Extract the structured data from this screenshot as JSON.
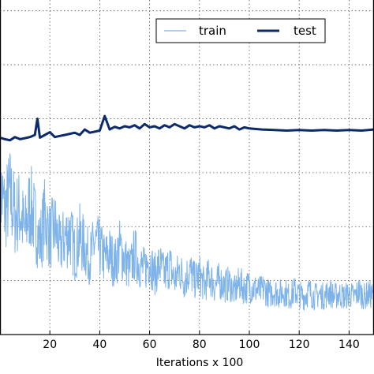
{
  "chart_data": {
    "type": "line",
    "title": "",
    "xlabel": "Iterations x 100",
    "ylabel": "",
    "xlim": [
      0,
      150
    ],
    "ylim": [
      0,
      6.2
    ],
    "x_ticks": [
      20,
      40,
      60,
      80,
      100,
      120,
      140
    ],
    "x_tick_labels": [
      "20",
      "40",
      "60",
      "80",
      "100",
      "120",
      "140"
    ],
    "y_gridlines": [
      1,
      2,
      3,
      4,
      5,
      6
    ],
    "grid": true,
    "legend": {
      "placement": "top-right",
      "columns": 2
    },
    "colors": {
      "train": "#7eb3ea",
      "test": "#0d2a6b"
    },
    "series": [
      {
        "name": "train",
        "x": [
          0,
          2,
          4,
          6,
          8,
          10,
          12,
          14,
          16,
          18,
          20,
          22,
          24,
          26,
          28,
          30,
          32,
          34,
          36,
          38,
          40,
          42,
          44,
          46,
          48,
          50,
          52,
          54,
          56,
          58,
          60,
          62,
          64,
          66,
          68,
          70,
          72,
          74,
          76,
          78,
          80,
          82,
          84,
          86,
          88,
          90,
          92,
          94,
          96,
          98,
          100,
          102,
          104,
          106,
          108,
          110,
          112,
          114,
          116,
          118,
          120,
          122,
          124,
          126,
          128,
          130,
          132,
          134,
          136,
          138,
          140,
          142,
          144,
          146,
          148,
          150
        ],
        "values": [
          2.7,
          2.3,
          2.6,
          2.2,
          2.3,
          1.9,
          2.4,
          2.1,
          1.7,
          2.2,
          1.8,
          2.0,
          1.6,
          1.8,
          1.9,
          1.5,
          1.8,
          1.6,
          1.4,
          1.7,
          1.6,
          1.4,
          1.5,
          1.3,
          1.6,
          1.4,
          1.2,
          1.5,
          1.3,
          1.2,
          1.4,
          1.1,
          1.3,
          1.1,
          1.3,
          1.0,
          1.2,
          1.0,
          1.2,
          1.0,
          1.1,
          0.9,
          1.1,
          0.9,
          1.0,
          0.9,
          0.95,
          0.8,
          0.95,
          0.85,
          0.9,
          0.85,
          0.8,
          0.85,
          0.75,
          0.8,
          0.75,
          0.8,
          0.7,
          0.8,
          0.75,
          0.7,
          0.8,
          0.7,
          0.75,
          0.7,
          0.8,
          0.7,
          0.75,
          0.7,
          0.75,
          0.7,
          0.8,
          0.7,
          0.75,
          0.7
        ]
      },
      {
        "name": "test",
        "x": [
          0,
          2,
          4,
          6,
          8,
          10,
          12,
          14,
          15,
          16,
          18,
          20,
          22,
          24,
          26,
          28,
          30,
          32,
          34,
          36,
          38,
          40,
          42,
          44,
          46,
          48,
          50,
          52,
          54,
          56,
          58,
          60,
          62,
          64,
          66,
          68,
          70,
          72,
          74,
          76,
          78,
          80,
          82,
          84,
          86,
          88,
          90,
          92,
          94,
          96,
          98,
          100,
          105,
          110,
          115,
          120,
          125,
          130,
          135,
          140,
          145,
          150
        ],
        "values": [
          3.65,
          3.62,
          3.6,
          3.66,
          3.62,
          3.64,
          3.66,
          3.7,
          4.0,
          3.65,
          3.7,
          3.75,
          3.66,
          3.68,
          3.7,
          3.72,
          3.74,
          3.7,
          3.8,
          3.74,
          3.76,
          3.78,
          4.05,
          3.8,
          3.85,
          3.82,
          3.86,
          3.84,
          3.88,
          3.82,
          3.9,
          3.84,
          3.86,
          3.82,
          3.88,
          3.84,
          3.9,
          3.86,
          3.82,
          3.88,
          3.84,
          3.86,
          3.84,
          3.88,
          3.82,
          3.86,
          3.84,
          3.82,
          3.86,
          3.8,
          3.84,
          3.82,
          3.8,
          3.79,
          3.78,
          3.79,
          3.78,
          3.79,
          3.78,
          3.79,
          3.78,
          3.8
        ]
      }
    ]
  }
}
